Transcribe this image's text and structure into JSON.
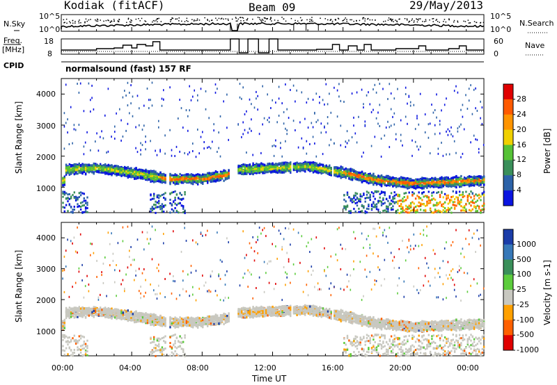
{
  "header": {
    "site": "Kodiak (fitACF)",
    "beam": "Beam 09",
    "date": "29/May/2013"
  },
  "top_panel_labels": {
    "nsky": "N.Sky",
    "nsearch": "N.Search",
    "freq_line1": "Freq.",
    "freq_line2": "[MHz]",
    "nave": "Nave",
    "cpid": "CPID",
    "mode": "normalsound (fast) 157 RF",
    "nsky_ticks": [
      "10^5",
      "10^0"
    ],
    "nsearch_ticks": [
      "10^5",
      "10^0"
    ],
    "freq_ticks": [
      "18",
      "8"
    ],
    "nave_ticks": [
      "60",
      "0"
    ]
  },
  "chart_data": [
    {
      "type": "heatmap",
      "name": "power-panel",
      "ylabel": "Slant Range [km]",
      "y_ticks": [
        "4000",
        "3000",
        "2000",
        "1000"
      ],
      "ylim": [
        180,
        4500
      ],
      "xlim": [
        0,
        24
      ],
      "colorbar_label": "Power [dB]",
      "colorbar_ticks": [
        "28",
        "24",
        "20",
        "16",
        "12",
        "8",
        "4"
      ],
      "colorbar_colors": [
        "#e00000",
        "#ff5a00",
        "#ff9400",
        "#f0d000",
        "#56c236",
        "#3a8f5a",
        "#2c62a8",
        "#0a14e0"
      ],
      "echo_band": [
        {
          "t": 0.2,
          "range": 1600
        },
        {
          "t": 2.0,
          "range": 1650
        },
        {
          "t": 4.0,
          "range": 1500
        },
        {
          "t": 6.0,
          "range": 1300
        },
        {
          "t": 8.0,
          "range": 1300
        },
        {
          "t": 9.5,
          "range": 1450
        },
        {
          "t": 10.0,
          "range": 1600
        },
        {
          "t": 12.0,
          "range": 1650
        },
        {
          "t": 14.0,
          "range": 1700
        },
        {
          "t": 16.0,
          "range": 1500
        },
        {
          "t": 18.0,
          "range": 1250
        },
        {
          "t": 20.0,
          "range": 1150
        },
        {
          "t": 22.0,
          "range": 1200
        },
        {
          "t": 24.0,
          "range": 1250
        }
      ]
    },
    {
      "type": "heatmap",
      "name": "velocity-panel",
      "ylabel": "Slant Range [km]",
      "xlabel": "Time UT",
      "y_ticks": [
        "4000",
        "3000",
        "2000",
        "1000"
      ],
      "ylim": [
        180,
        4500
      ],
      "xlim": [
        0,
        24
      ],
      "x_ticks": [
        "00:00",
        "04:00",
        "08:00",
        "12:00",
        "16:00",
        "20:00",
        "00:00"
      ],
      "colorbar_label": "Velocity [m s-1]",
      "colorbar_ticks": [
        "1000",
        "500",
        "100",
        "25",
        "-25",
        "-100",
        "-500",
        "-1000"
      ],
      "colorbar_colors": [
        "#1a3ca8",
        "#3778b8",
        "#3a8f5a",
        "#5ccc3c",
        "#c8c8c0",
        "#ffa000",
        "#ff6000",
        "#e00000"
      ]
    }
  ]
}
